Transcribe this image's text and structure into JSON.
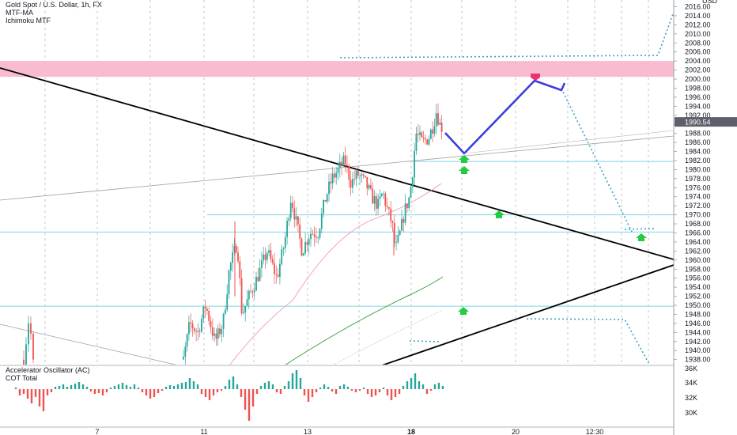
{
  "legend": {
    "symbol": "Gold Spot / U.S. Dollar, 1h, FX",
    "indicator_1": "MTF-MA",
    "indicator_2": "Ichimoku MTF"
  },
  "sub_legend": {
    "indicator_1": "Accelerator Oscillator (AC)",
    "indicator_2": "COT Total"
  },
  "currency_label": "USD",
  "colors": {
    "up_candle": "#26a69a",
    "down_candle": "#ef5350",
    "zone": "#f8bbd0",
    "trendline": "#000000",
    "projection": "#3d3ddb",
    "forecast_dotted": "#3ba3c8",
    "level_line": "#7fd6de",
    "arrow_up": "#22cc44",
    "arrow_down": "#e8336d",
    "ma_green": "#43a047",
    "ma_pink": "#f48fb1"
  },
  "chart_data": {
    "type": "candlestick",
    "y_ticks": [
      "2016.00",
      "2014.00",
      "2012.00",
      "2010.00",
      "2008.00",
      "2006.00",
      "2004.00",
      "2002.00",
      "2000.00",
      "1998.00",
      "1996.00",
      "1994.00",
      "1992.00",
      "1990.00",
      "1988.00",
      "1986.00",
      "1984.00",
      "1982.00",
      "1980.00",
      "1978.00",
      "1976.00",
      "1974.00",
      "1972.00",
      "1970.00",
      "1968.00",
      "1966.00",
      "1964.00",
      "1962.00",
      "1960.00",
      "1958.00",
      "1956.00",
      "1954.00",
      "1952.00",
      "1950.00",
      "1948.00",
      "1946.00",
      "1944.00",
      "1942.00",
      "1940.00",
      "1938.00"
    ],
    "ylim": [
      1937.5,
      2019
    ],
    "current_price": "1990.54",
    "x_ticks": [
      "7",
      "11",
      "13",
      "18",
      "20",
      "12:30"
    ],
    "resistance_zone": [
      2000.5,
      2004
    ],
    "levels": [
      1981.8,
      1970.0,
      1966.2,
      1949.8
    ],
    "sub_axis_ticks": [
      "36K",
      "34K",
      "32K",
      "30K"
    ]
  }
}
